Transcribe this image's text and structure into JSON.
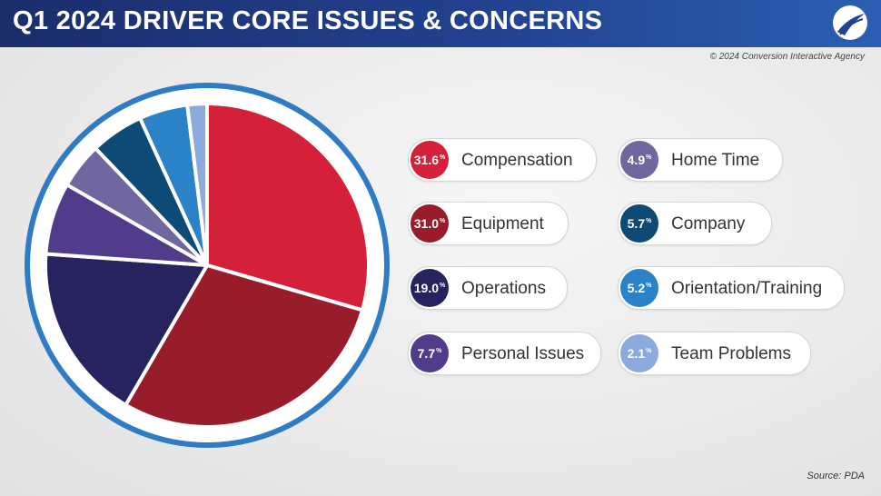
{
  "header": {
    "title": "Q1 2024 DRIVER CORE ISSUES & CONCERNS",
    "logo_icon": "road-swoosh-logo-icon"
  },
  "copyright": "© 2024 Conversion Interactive Agency",
  "source": "Source: PDA",
  "chart_data": {
    "type": "pie",
    "title": "Q1 2024 DRIVER CORE ISSUES & CONCERNS",
    "percent_unit": "%",
    "slices": [
      {
        "label": "Compensation",
        "value": 31.6,
        "display": "31.6",
        "color": "#d42039"
      },
      {
        "label": "Equipment",
        "value": 31.0,
        "display": "31.0",
        "color": "#981c29"
      },
      {
        "label": "Operations",
        "value": 19.0,
        "display": "19.0",
        "color": "#26235e"
      },
      {
        "label": "Personal Issues",
        "value": 7.7,
        "display": "7.7",
        "color": "#513c8c"
      },
      {
        "label": "Home Time",
        "value": 4.9,
        "display": "4.9",
        "color": "#7167a0"
      },
      {
        "label": "Company",
        "value": 5.7,
        "display": "5.7",
        "color": "#0d4a75"
      },
      {
        "label": "Orientation/Training",
        "value": 5.2,
        "display": "5.2",
        "color": "#2b82c6"
      },
      {
        "label": "Team Problems",
        "value": 2.1,
        "display": "2.1",
        "color": "#8cabdc"
      }
    ],
    "ring_color": "#2f7cc4"
  }
}
